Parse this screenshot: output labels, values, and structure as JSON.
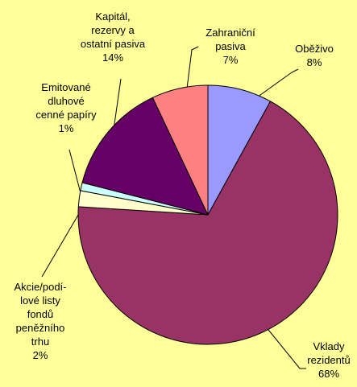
{
  "chart_data": {
    "type": "pie",
    "categories": [
      "Oběživo",
      "Vklady\nrezidentů",
      "Akcie/podí-\nlové listy\nfondů\npeněžního\ntrhu",
      "Emitované\ndluhové\ncenné papíry",
      "Kapitál,\nrezervy a\nostatní pasiva",
      "Zahraniční\npasiva"
    ],
    "values": [
      8,
      68,
      2,
      1,
      14,
      7
    ],
    "value_labels": [
      "8%",
      "68%",
      "2%",
      "1%",
      "14%",
      "7%"
    ],
    "colors": [
      "#9999ff",
      "#993366",
      "#ffffcc",
      "#ccffff",
      "#660066",
      "#ff8080"
    ]
  }
}
